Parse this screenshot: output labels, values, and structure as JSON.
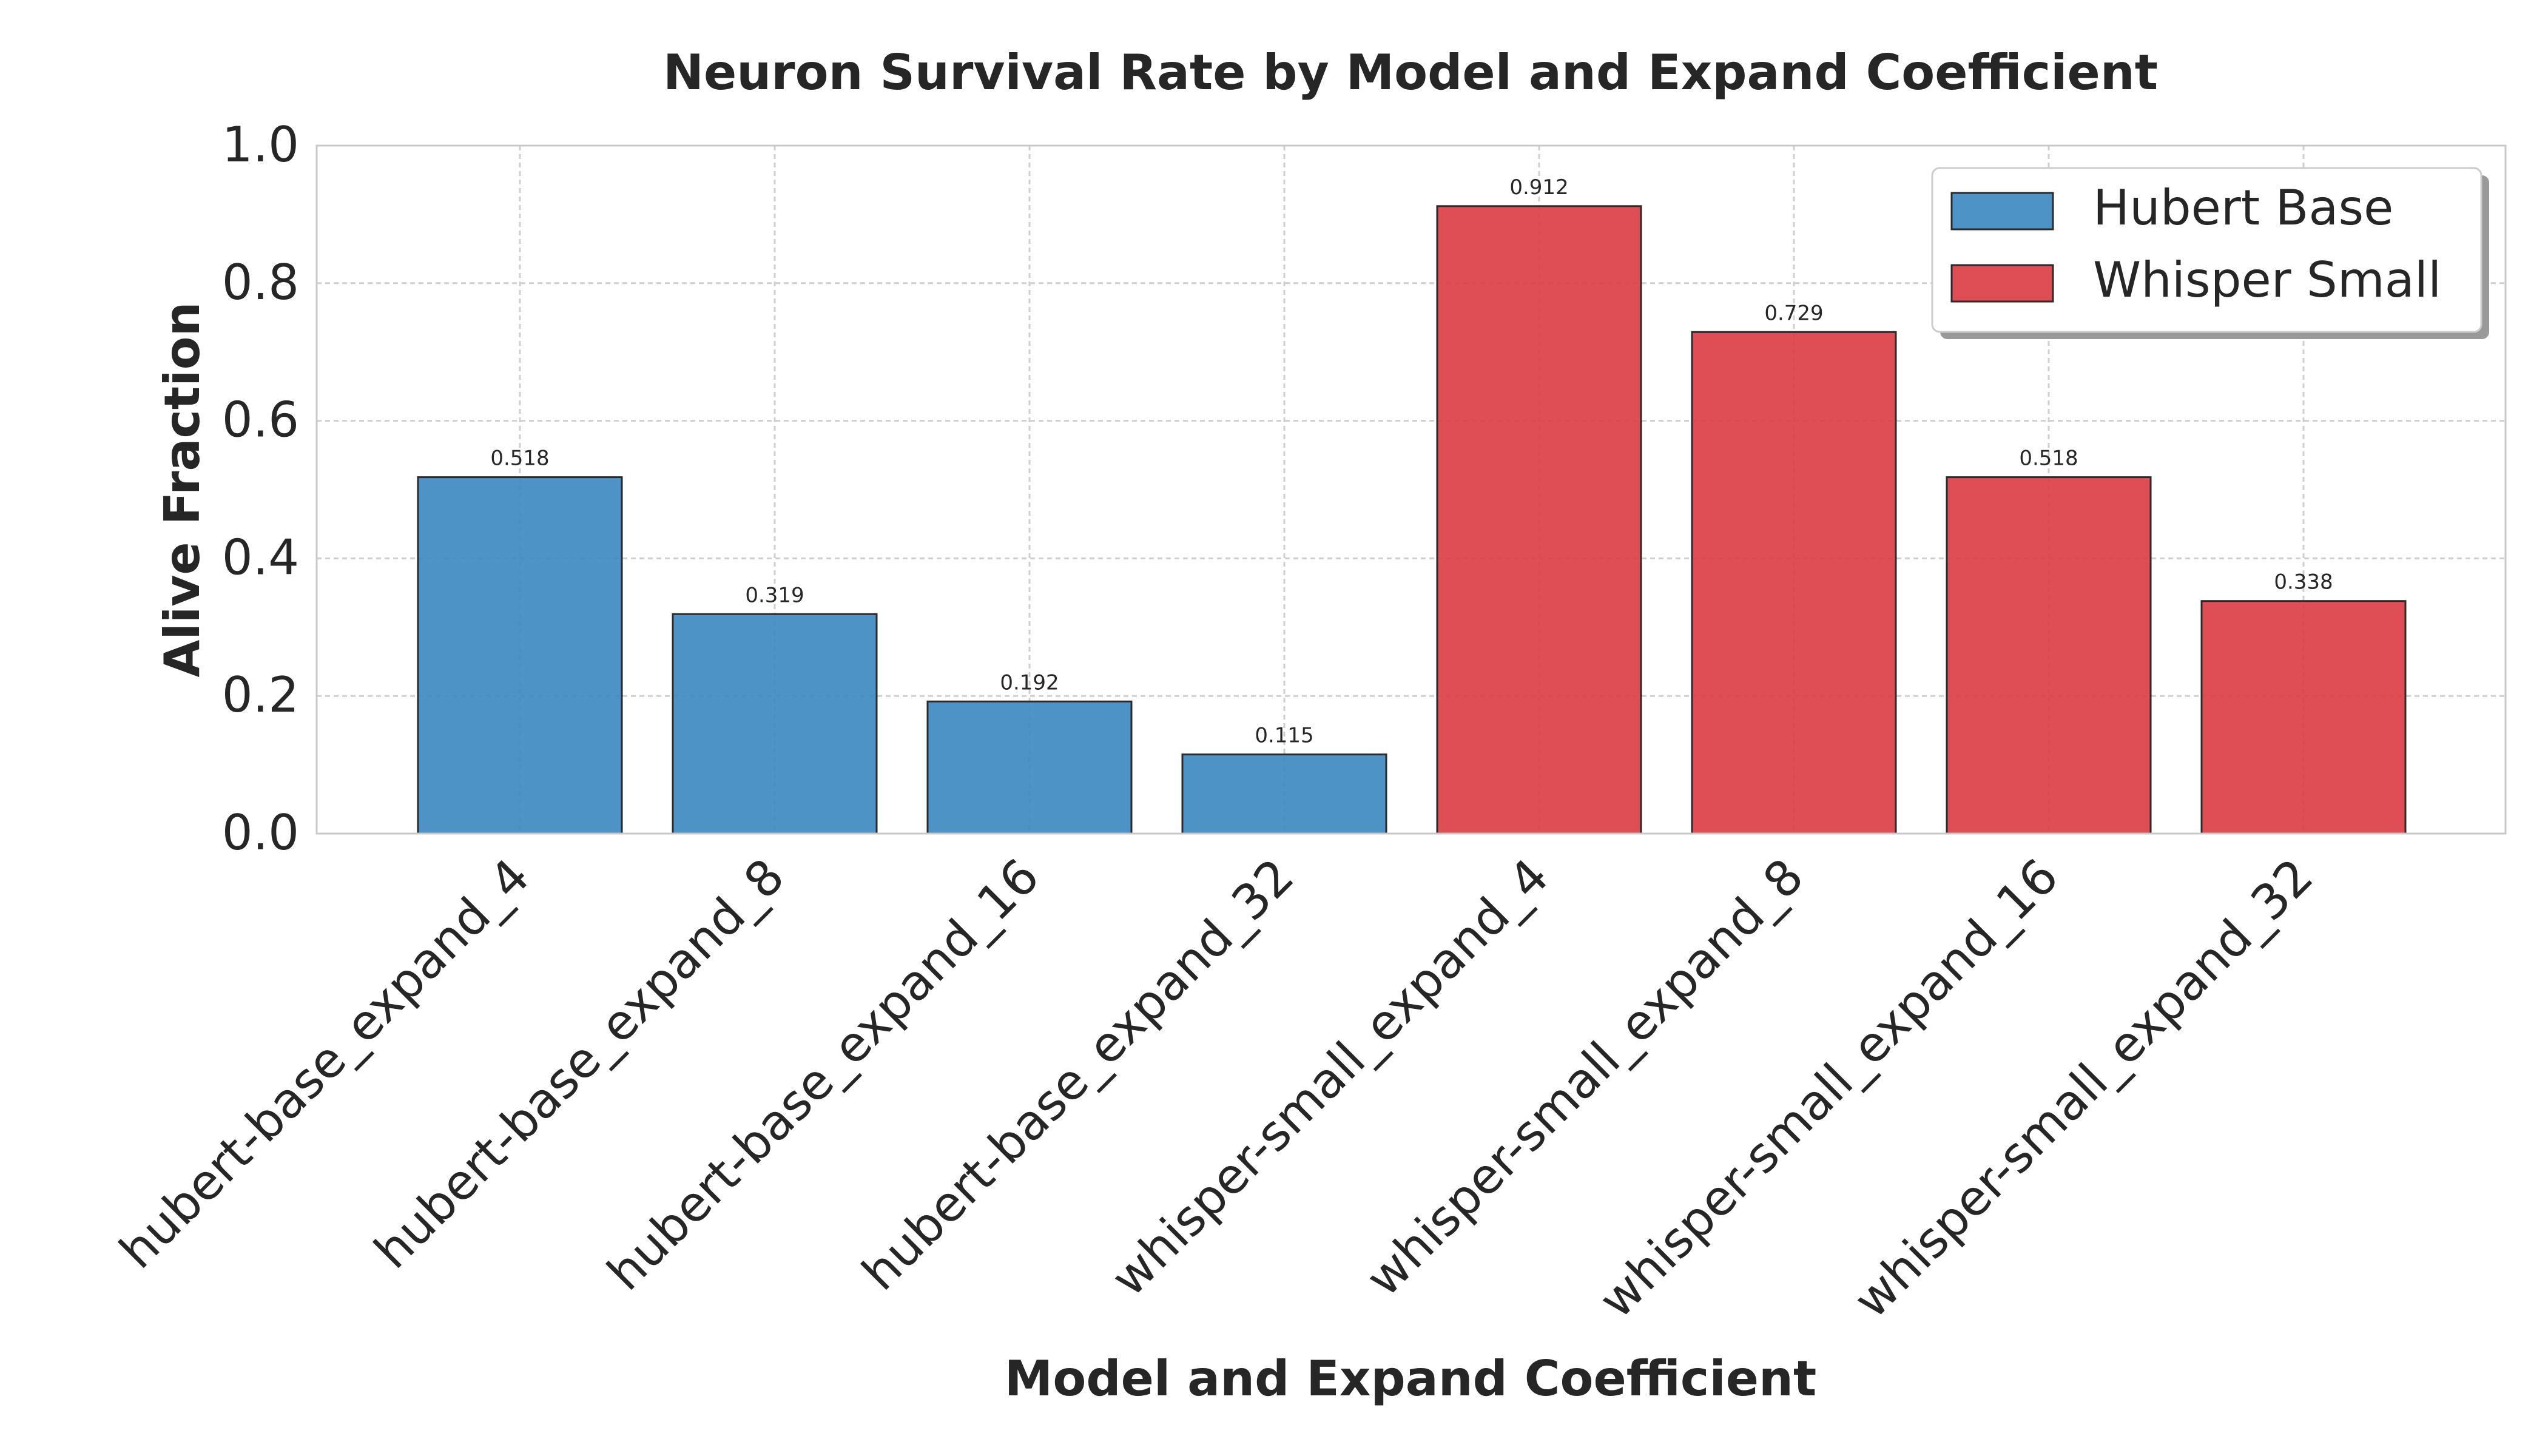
{
  "chart_data": {
    "type": "bar",
    "title": "Neuron Survival Rate by Model and Expand Coefficient",
    "xlabel": "Model and Expand Coefficient",
    "ylabel": "Alive Fraction",
    "ylim": [
      0,
      1.0
    ],
    "yticks": [
      "0.0",
      "0.2",
      "0.4",
      "0.6",
      "0.8",
      "1.0"
    ],
    "grid": true,
    "legend_position": "top-right",
    "categories": [
      "hubert-base_expand_4",
      "hubert-base_expand_8",
      "hubert-base_expand_16",
      "hubert-base_expand_32",
      "whisper-small_expand_4",
      "whisper-small_expand_8",
      "whisper-small_expand_16",
      "whisper-small_expand_32"
    ],
    "values": [
      0.518,
      0.319,
      0.192,
      0.115,
      0.912,
      0.729,
      0.518,
      0.338
    ],
    "value_labels": [
      "0.518",
      "0.319",
      "0.192",
      "0.115",
      "0.912",
      "0.729",
      "0.518",
      "0.338"
    ],
    "bar_series": [
      0,
      0,
      0,
      0,
      1,
      1,
      1,
      1
    ],
    "series": [
      {
        "name": "Hubert Base",
        "color": "#3a87c0"
      },
      {
        "name": "Whisper Small",
        "color": "#dc3b42"
      }
    ]
  }
}
